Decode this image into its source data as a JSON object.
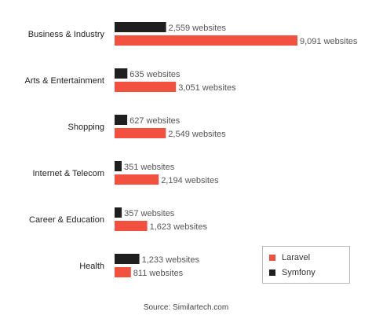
{
  "chart_data": {
    "type": "bar",
    "orientation": "horizontal",
    "categories": [
      "Business & Industry",
      "Arts & Entertainment",
      "Shopping",
      "Internet & Telecom",
      "Career & Education",
      "Health"
    ],
    "series": [
      {
        "name": "Symfony",
        "color": "#1f1f1f",
        "values": [
          2559,
          635,
          627,
          351,
          357,
          1233
        ],
        "labels": [
          "2,559 websites",
          "635 websites",
          "627 websites",
          "351 websites",
          "357 websites",
          "1,233 websites"
        ]
      },
      {
        "name": "Laravel",
        "color": "#f2513f",
        "values": [
          9091,
          3051,
          2549,
          2194,
          1623,
          811
        ],
        "labels": [
          "9,091 websites",
          "3,051 websites",
          "2,549 websites",
          "2,194 websites",
          "1,623 websites",
          "811 websites"
        ]
      }
    ],
    "xlim": [
      0,
      9091
    ],
    "grid": false,
    "legend_position": "bottom-right"
  },
  "legend": {
    "laravel": "Laravel",
    "symfony": "Symfony"
  },
  "source": "Source: Similartech.com"
}
